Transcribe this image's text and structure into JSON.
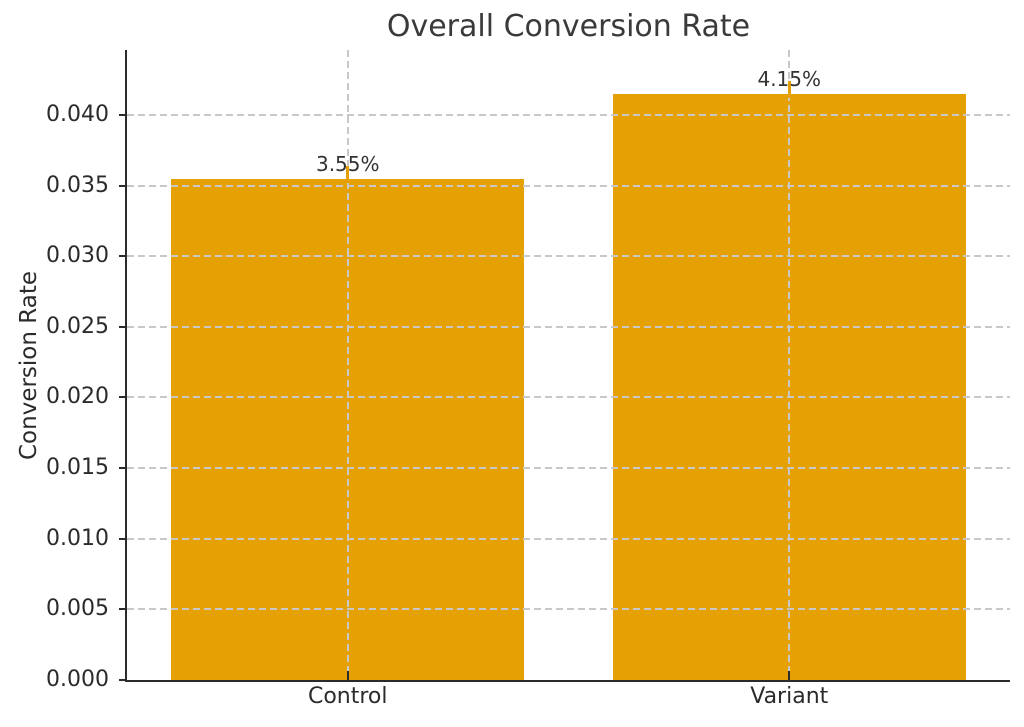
{
  "chart_data": {
    "type": "bar",
    "title": "Overall Conversion Rate",
    "xlabel": "",
    "ylabel": "Conversion Rate",
    "categories": [
      "Control",
      "Variant"
    ],
    "values": [
      0.0355,
      0.0415
    ],
    "errors": [
      0.0009,
      0.0009
    ],
    "bar_labels": [
      "3.55%",
      "4.15%"
    ],
    "yticks": [
      0.0,
      0.005,
      0.01,
      0.015,
      0.02,
      0.025,
      0.03,
      0.035,
      0.04
    ],
    "ytick_format_decimals": 3,
    "ylim": [
      0,
      0.0446
    ],
    "bar_width_fraction": 0.8,
    "grid": {
      "visible": true,
      "style": "dashed",
      "color": "#c8c8c8",
      "over_bars": true
    },
    "legend": "none",
    "colors": {
      "bar": "#e5a004",
      "spine": "#2b2b2b",
      "tick_text": "#2b2b2b",
      "title_text": "#3a3a3a",
      "annotation_text": "#333333",
      "background": "#ffffff"
    }
  }
}
